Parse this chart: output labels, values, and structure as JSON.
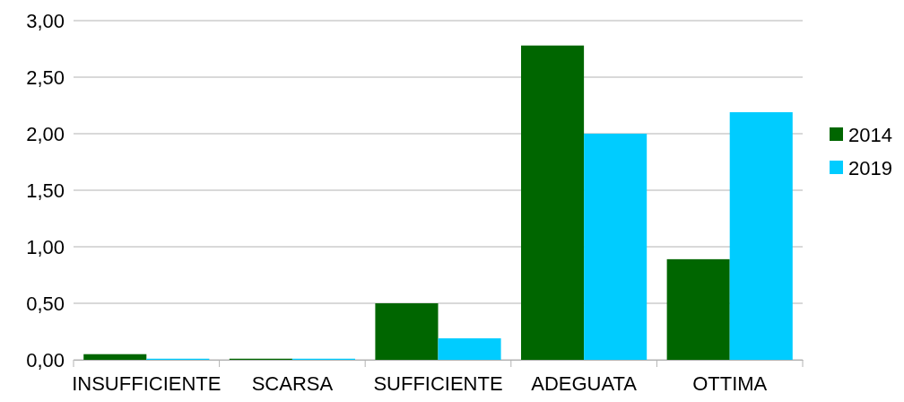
{
  "chart_data": {
    "type": "bar",
    "categories": [
      "INSUFFICIENTE",
      "SCARSA",
      "SUFFICIENTE",
      "ADEGUATA",
      "OTTIMA"
    ],
    "series": [
      {
        "name": "2014",
        "color": "#006600",
        "values": [
          0.05,
          0.01,
          0.5,
          2.78,
          0.89
        ]
      },
      {
        "name": "2019",
        "color": "#00ccff",
        "values": [
          0.01,
          0.01,
          0.19,
          2.0,
          2.19
        ]
      }
    ],
    "ylim": [
      0,
      3
    ],
    "yticks": [
      {
        "value": 0,
        "label": "0,00"
      },
      {
        "value": 0.5,
        "label": "0,50"
      },
      {
        "value": 1,
        "label": "1,00"
      },
      {
        "value": 1.5,
        "label": "1,50"
      },
      {
        "value": 2,
        "label": "2,00"
      },
      {
        "value": 2.5,
        "label": "2,50"
      },
      {
        "value": 3,
        "label": "3,00"
      }
    ],
    "grid": "y",
    "legend": "right"
  }
}
